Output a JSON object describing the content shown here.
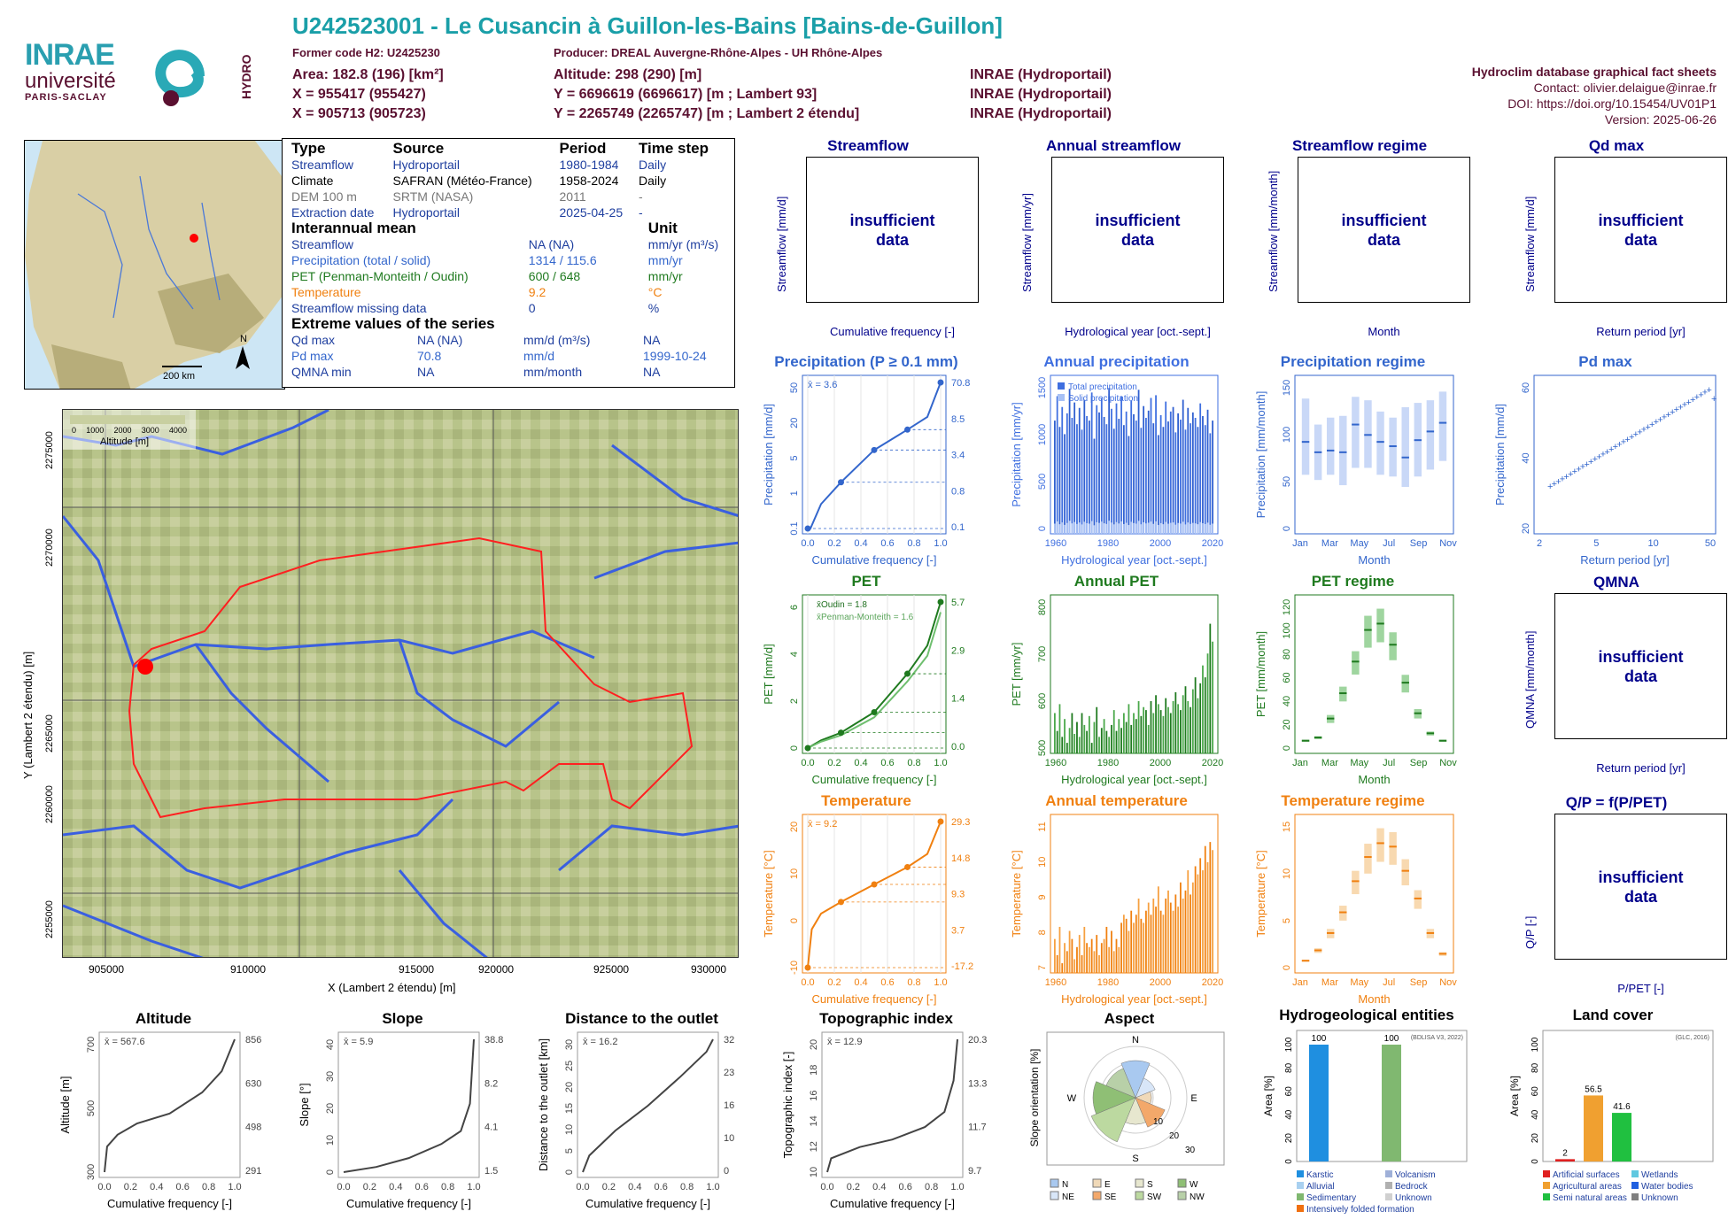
{
  "header": {
    "title": "U242523001 - Le Cusancin à Guillon-les-Bains [Bains-de-Guillon]",
    "former_code": "Former code H2: U2425230",
    "producer": "Producer: DREAL Auvergne-Rhône-Alpes - UH Rhône-Alpes",
    "area": "Area: 182.8 (196) [km²]",
    "altitude": "Altitude: 298 (290) [m]",
    "x93": "X = 955417 (955427)",
    "y93": "Y = 6696619 (6696617) [m ; Lambert 93]",
    "x2": "X = 905713 (905723)",
    "y2": "Y = 2265749 (2265747) [m ; Lambert 2 étendu]",
    "src1": "INRAE (Hydroportail)",
    "src2": "INRAE (Hydroportail)",
    "src3": "INRAE (Hydroportail)",
    "db": "Hydroclim database graphical fact sheets",
    "contact": "Contact: olivier.delaigue@inrae.fr",
    "doi": "DOI: https://doi.org/10.15454/UV01P1",
    "version": "Version: 2025-06-26",
    "logo_inrae": "INRAE",
    "logo_univ": "université",
    "logo_paris": "PARIS-SACLAY",
    "logo_hydro": "HYDRO"
  },
  "info": {
    "h_type": "Type",
    "h_source": "Source",
    "h_period": "Period",
    "h_step": "Time step",
    "rows": [
      [
        "Streamflow",
        "Hydroportail",
        "1980-1984",
        "Daily"
      ],
      [
        "Climate",
        "SAFRAN (Météo-France)",
        "1958-2024",
        "Daily"
      ],
      [
        "DEM 100 m",
        "SRTM (NASA)",
        "2011",
        "-"
      ],
      [
        "Extraction date",
        "Hydroportail",
        "2025-04-25",
        "-"
      ]
    ],
    "h_inter": "Interannual mean",
    "h_unit": "Unit",
    "inter": [
      [
        "Streamflow",
        "NA (NA)",
        "mm/yr (m³/s)"
      ],
      [
        "Precipitation (total / solid)",
        "1314 / 115.6",
        "mm/yr"
      ],
      [
        "PET (Penman-Monteith / Oudin)",
        "600 / 648",
        "mm/yr"
      ],
      [
        "Temperature",
        "9.2",
        "°C"
      ],
      [
        "Streamflow missing data",
        "0",
        "%"
      ]
    ],
    "h_ext": "Extreme values of the series",
    "ext": [
      [
        "Qd max",
        "NA (NA)",
        "mm/d (m³/s)",
        "NA"
      ],
      [
        "Pd max",
        "70.8",
        "mm/d",
        "1999-10-24"
      ],
      [
        "QMNA min",
        "NA",
        "mm/month",
        "NA"
      ]
    ]
  },
  "map_small": {
    "scale": "200 km",
    "north": "N"
  },
  "map_big": {
    "legend_title": "Altitude [m]",
    "legend_ticks": [
      "0",
      "1000",
      "2000",
      "3000",
      "4000"
    ],
    "xticks": [
      "905000",
      "910000",
      "915000",
      "920000",
      "925000",
      "930000"
    ],
    "yticks": [
      "2275000",
      "2270000",
      "2265000",
      "2260000",
      "2255000"
    ],
    "xlabel": "X (Lambert 2 étendu) [m]",
    "ylabel": "Y (Lambert 2 étendu) [m]"
  },
  "insufficient": "insufficient data",
  "panels": {
    "streamflow": {
      "title": "Streamflow",
      "ylabel": "Streamflow [mm/d]",
      "xlabel": "Cumulative frequency [-]"
    },
    "annual_streamflow": {
      "title": "Annual streamflow",
      "ylabel": "Streamflow [mm/yr]",
      "xlabel": "Hydrological year [oct.-sept.]"
    },
    "regime": {
      "title": "Streamflow regime",
      "ylabel": "Streamflow [mm/month]",
      "xlabel": "Month"
    },
    "qdmax": {
      "title": "Qd max",
      "ylabel": "Streamflow [mm/d]",
      "xlabel": "Return period [yr]"
    },
    "qmna": {
      "title": "QMNA",
      "ylabel": "QMNA [mm/month]",
      "xlabel": "Return period [yr]"
    },
    "qp": {
      "title": "Q/P = f(P/PET)",
      "ylabel": "Q/P [-]",
      "xlabel": "P/PET [-]"
    }
  },
  "chart_data": [
    {
      "id": "precip_cdf",
      "type": "line",
      "title": "Precipitation (P ≥ 0.1 mm)",
      "xlabel": "Cumulative frequency [-]",
      "ylabel": "Precipitation [mm/d]",
      "annot": "x̄ = 3.6",
      "right_ticks": [
        "70.8",
        "8.5",
        "3.4",
        "0.8",
        "0.1"
      ],
      "yticks": [
        "0.1",
        "1",
        "5",
        "20",
        "50"
      ],
      "xticks": [
        "0.0",
        "0.2",
        "0.4",
        "0.6",
        "0.8",
        "1.0"
      ],
      "x": [
        0,
        0.02,
        0.1,
        0.25,
        0.5,
        0.75,
        0.9,
        1.0
      ],
      "y": [
        0.1,
        0.1,
        0.3,
        0.8,
        3.4,
        8.5,
        15,
        70.8
      ],
      "color": "#3366cc"
    },
    {
      "id": "precip_annual",
      "type": "bar",
      "title": "Annual precipitation",
      "xlabel": "Hydrological year [oct.-sept.]",
      "ylabel": "Precipitation [mm/yr]",
      "legend": [
        "Total precipitation",
        "Solid precipitation"
      ],
      "xticks": [
        "1960",
        "1980",
        "2000",
        "2020"
      ],
      "yticks": [
        "0",
        "500",
        "1000",
        "1500"
      ],
      "color": "#3f6fe0",
      "values": [
        1250,
        1520,
        1180,
        1400,
        1100,
        1330,
        1600,
        1280,
        1450,
        1210,
        1390,
        1150,
        1480,
        1300,
        1250,
        1560,
        1050,
        1420,
        1340,
        1500,
        1290,
        1210,
        1610,
        1380,
        1160,
        1440,
        1270,
        1520,
        1200,
        1350,
        1080,
        1470,
        1320,
        1250,
        1590,
        1170,
        1410,
        1280,
        1360,
        1500,
        1220,
        1530,
        1090,
        1310,
        1180,
        1460,
        1240,
        1350,
        1400,
        1120,
        1330,
        1260,
        1480,
        1150,
        1390,
        1220,
        1340,
        1280,
        1180,
        1440,
        1300,
        1200,
        1370,
        1110,
        1250
      ]
    },
    {
      "id": "precip_regime",
      "type": "box",
      "title": "Precipitation regime",
      "xlabel": "Month",
      "ylabel": "Precipitation [mm/month]",
      "xticks": [
        "Jan",
        "Mar",
        "May",
        "Jul",
        "Sep",
        "Nov"
      ],
      "yticks": [
        "0",
        "50",
        "100",
        "150"
      ],
      "median": [
        100,
        88,
        90,
        88,
        120,
        108,
        100,
        95,
        82,
        102,
        112,
        122
      ],
      "q1": [
        62,
        56,
        62,
        50,
        70,
        70,
        62,
        60,
        48,
        60,
        68,
        78
      ],
      "q3": [
        150,
        120,
        128,
        130,
        152,
        148,
        135,
        128,
        140,
        145,
        148,
        158
      ]
    },
    {
      "id": "pdmax",
      "type": "scatter",
      "title": "Pd max",
      "xlabel": "Return period [yr]",
      "ylabel": "Precipitation [mm/d]",
      "xticks": [
        "2",
        "5",
        "10",
        "50"
      ],
      "yticks": [
        "20",
        "40",
        "60"
      ]
    },
    {
      "id": "pet_cdf",
      "type": "line",
      "title": "PET",
      "xlabel": "Cumulative frequency [-]",
      "ylabel": "PET [mm/d]",
      "annot1": "x̄Oudin = 1.8",
      "annot2": "x̄Penman-Monteith = 1.6",
      "right_ticks": [
        "5.7",
        "2.9",
        "1.4",
        "0.0"
      ],
      "yticks": [
        "0",
        "2",
        "4",
        "6"
      ],
      "xticks": [
        "0.0",
        "0.2",
        "0.4",
        "0.6",
        "0.8",
        "1.0"
      ],
      "x": [
        0,
        0.1,
        0.25,
        0.5,
        0.75,
        0.9,
        1.0
      ],
      "y": [
        0,
        0.3,
        0.6,
        1.4,
        2.9,
        4.0,
        5.7
      ],
      "y2": [
        0,
        0.25,
        0.5,
        1.2,
        2.6,
        3.6,
        5.3
      ]
    },
    {
      "id": "pet_annual",
      "type": "bar",
      "title": "Annual PET",
      "xlabel": "Hydrological year [oct.-sept.]",
      "ylabel": "PET [mm/yr]",
      "xticks": [
        "1960",
        "1980",
        "2000",
        "2020"
      ],
      "yticks": [
        "500",
        "600",
        "700",
        "800"
      ],
      "values": [
        640,
        610,
        655,
        600,
        630,
        590,
        615,
        640,
        605,
        625,
        600,
        640,
        620,
        610,
        635,
        590,
        625,
        650,
        600,
        615,
        630,
        610,
        600,
        620,
        645,
        610,
        630,
        615,
        640,
        625,
        655,
        620,
        640,
        630,
        660,
        635,
        650,
        645,
        620,
        660,
        640,
        670,
        655,
        645,
        635,
        665,
        650,
        640,
        660,
        675,
        655,
        645,
        670,
        685,
        660,
        650,
        680,
        700,
        665,
        690,
        720,
        700,
        740,
        790,
        760
      ]
    },
    {
      "id": "pet_regime",
      "type": "box",
      "title": "PET regime",
      "xlabel": "Month",
      "ylabel": "PET [mm/month]",
      "xticks": [
        "Jan",
        "Mar",
        "May",
        "Jul",
        "Sep",
        "Nov"
      ],
      "yticks": [
        "0",
        "20",
        "40",
        "60",
        "80",
        "100",
        "120"
      ],
      "median": [
        7,
        10,
        28,
        52,
        82,
        112,
        118,
        98,
        62,
        33,
        14,
        7
      ]
    },
    {
      "id": "temp_cdf",
      "type": "line",
      "title": "Temperature",
      "xlabel": "Cumulative frequency [-]",
      "ylabel": "Temperature [°C]",
      "annot": "x̄ = 9.2",
      "right_ticks": [
        "29.3",
        "14.8",
        "9.3",
        "3.7",
        "-17.2"
      ],
      "yticks": [
        "-10",
        "0",
        "10",
        "20"
      ],
      "xticks": [
        "0.0",
        "0.2",
        "0.4",
        "0.6",
        "0.8",
        "1.0"
      ],
      "x": [
        0,
        0.03,
        0.1,
        0.25,
        0.5,
        0.75,
        0.9,
        1.0
      ],
      "y": [
        -17.2,
        -5,
        0,
        3.7,
        9.3,
        14.8,
        19,
        29.3
      ]
    },
    {
      "id": "temp_annual",
      "type": "bar",
      "title": "Annual temperature",
      "xlabel": "Hydrological year [oct.-sept.]",
      "ylabel": "Temperature [°C]",
      "xticks": [
        "1960",
        "1980",
        "2000",
        "2020"
      ],
      "yticks": [
        "7",
        "8",
        "9",
        "10",
        "11"
      ],
      "values": [
        8.6,
        8.2,
        8.9,
        8.0,
        8.5,
        8.3,
        8.8,
        8.6,
        8.1,
        8.4,
        8.7,
        8.2,
        8.9,
        8.5,
        8.4,
        8.6,
        8.3,
        8.7,
        8.2,
        8.5,
        8.6,
        8.9,
        8.4,
        8.8,
        8.3,
        8.6,
        8.4,
        9.0,
        9.2,
        9.1,
        8.8,
        9.3,
        9.0,
        9.2,
        9.6,
        9.1,
        9.0,
        9.3,
        9.5,
        9.2,
        9.6,
        9.4,
        9.9,
        9.3,
        9.2,
        9.6,
        9.8,
        9.5,
        9.3,
        9.7,
        9.4,
        10.0,
        9.6,
        9.8,
        10.3,
        9.7,
        10.0,
        10.4,
        10.2,
        10.6,
        10.3,
        10.9,
        10.5,
        11.0,
        10.8
      ]
    },
    {
      "id": "temp_regime",
      "type": "box",
      "title": "Temperature regime",
      "xlabel": "Month",
      "ylabel": "Temperature [°C]",
      "xticks": [
        "Jan",
        "Mar",
        "May",
        "Jul",
        "Sep",
        "Nov"
      ],
      "yticks": [
        "0",
        "5",
        "10",
        "15"
      ],
      "median": [
        1,
        2.5,
        5,
        8,
        12.5,
        16,
        18,
        17.5,
        14,
        10,
        5,
        2
      ]
    },
    {
      "id": "altitude",
      "type": "line",
      "title": "Altitude",
      "xlabel": "Cumulative frequency [-]",
      "ylabel": "Altitude [m]",
      "annot": "x̄ = 567.6",
      "right_ticks": [
        "856",
        "630",
        "498",
        "291"
      ],
      "yticks": [
        "300",
        "500",
        "700"
      ],
      "xticks": [
        "0.0",
        "0.2",
        "0.4",
        "0.6",
        "0.8",
        "1.0"
      ],
      "x": [
        0,
        0.02,
        0.1,
        0.25,
        0.5,
        0.75,
        0.9,
        1.0
      ],
      "y": [
        291,
        400,
        450,
        498,
        540,
        630,
        720,
        856
      ]
    },
    {
      "id": "slope",
      "type": "line",
      "title": "Slope",
      "xlabel": "Cumulative frequency [-]",
      "ylabel": "Slope [°]",
      "annot": "x̄ = 5.9",
      "right_ticks": [
        "38.8",
        "8.2",
        "4.1",
        "1.5"
      ],
      "yticks": [
        "0",
        "10",
        "20",
        "30",
        "40"
      ],
      "xticks": [
        "0.0",
        "0.2",
        "0.4",
        "0.6",
        "0.8",
        "1.0"
      ],
      "x": [
        0,
        0.25,
        0.5,
        0.75,
        0.9,
        0.97,
        1.0
      ],
      "y": [
        0,
        1.5,
        4.1,
        8.2,
        12,
        20,
        38.8
      ]
    },
    {
      "id": "distance",
      "type": "line",
      "title": "Distance to the outlet",
      "xlabel": "Cumulative frequency [-]",
      "ylabel": "Distance to the outlet [km]",
      "annot": "x̄ = 16.2",
      "right_ticks": [
        "32",
        "23",
        "16",
        "10",
        "0"
      ],
      "yticks": [
        "0",
        "5",
        "10",
        "15",
        "20",
        "25",
        "30"
      ],
      "xticks": [
        "0.0",
        "0.2",
        "0.4",
        "0.6",
        "0.8",
        "1.0"
      ],
      "x": [
        0,
        0.05,
        0.25,
        0.5,
        0.75,
        0.95,
        1.0
      ],
      "y": [
        0,
        4,
        10,
        16,
        23,
        29,
        32
      ]
    },
    {
      "id": "topo",
      "type": "line",
      "title": "Topographic index",
      "xlabel": "Cumulative frequency [-]",
      "ylabel": "Topographic index [-]",
      "annot": "x̄ = 12.9",
      "right_ticks": [
        "20.3",
        "13.3",
        "11.7",
        "9.7"
      ],
      "yticks": [
        "10",
        "12",
        "14",
        "16",
        "18",
        "20"
      ],
      "xticks": [
        "0.0",
        "0.2",
        "0.4",
        "0.6",
        "0.8",
        "1.0"
      ],
      "x": [
        0,
        0.03,
        0.25,
        0.5,
        0.75,
        0.9,
        0.97,
        1.0
      ],
      "y": [
        9.7,
        10.8,
        11.7,
        12.3,
        13.3,
        14.5,
        17,
        20.3
      ]
    },
    {
      "id": "aspect",
      "type": "pie",
      "title": "Aspect",
      "ylabel": "Slope orientation [%]",
      "directions": [
        "N",
        "NE",
        "E",
        "SE",
        "S",
        "SW",
        "W",
        "NW"
      ],
      "legend": [
        "N",
        "NE",
        "E",
        "SE",
        "S",
        "SW",
        "W",
        "NW"
      ],
      "rings": [
        "10",
        "20",
        "30"
      ],
      "values": [
        14,
        8,
        6,
        12,
        10,
        18,
        16,
        12
      ]
    },
    {
      "id": "hydrogeo",
      "type": "bar",
      "title": "Hydrogeological entities",
      "ylabel": "Area [%]",
      "source": "(BDLISA V3, 2022)",
      "yticks": [
        "0",
        "20",
        "40",
        "60",
        "80",
        "100"
      ],
      "categories": [
        "Karstic",
        "Sedimentary"
      ],
      "values": [
        100,
        100
      ],
      "labels": [
        "100",
        "100"
      ],
      "legend": [
        "Karstic",
        "Alluvial",
        "Sedimentary",
        "Intensively folded formation",
        "Volcanism",
        "Bedrock",
        "Unknown"
      ]
    },
    {
      "id": "landcover",
      "type": "bar",
      "title": "Land cover",
      "ylabel": "Area [%]",
      "source": "(GLC, 2016)",
      "yticks": [
        "0",
        "20",
        "40",
        "60",
        "80",
        "100"
      ],
      "categories": [
        "Artificial surfaces",
        "Agricultural areas",
        "Semi natural areas"
      ],
      "values": [
        2,
        56.5,
        41.6
      ],
      "labels": [
        "2",
        "56.5",
        "41.6"
      ],
      "legend": [
        "Artificial surfaces",
        "Agricultural areas",
        "Semi natural areas",
        "Wetlands",
        "Water bodies",
        "Unknown"
      ]
    }
  ]
}
